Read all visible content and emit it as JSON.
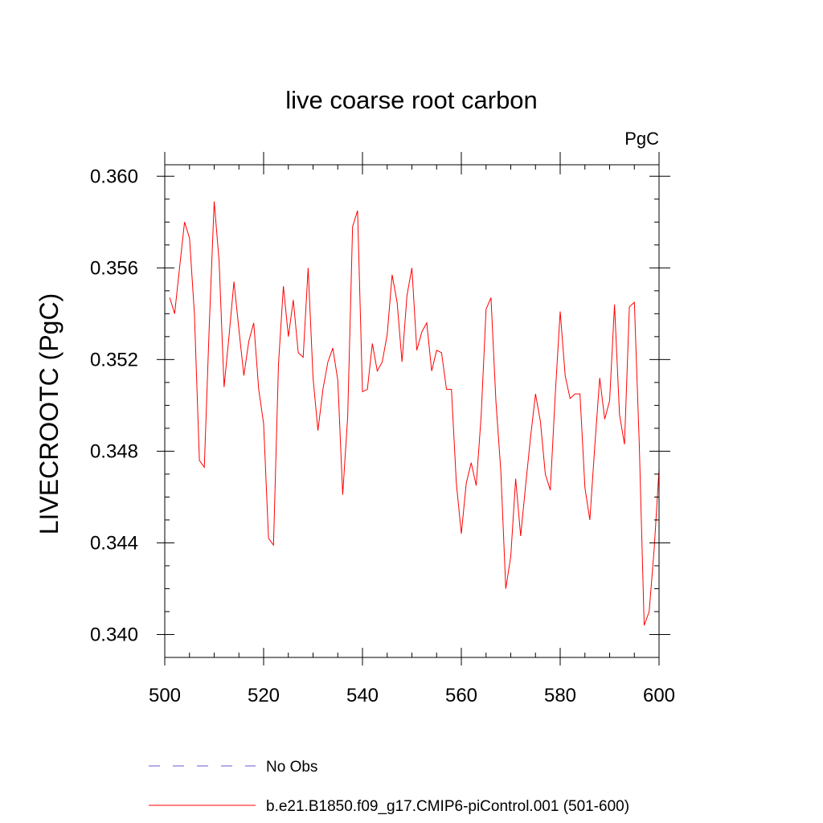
{
  "chart_data": {
    "type": "line",
    "title": "live coarse root carbon",
    "units_label": "PgC",
    "ylabel": "LIVECROOTC  (PgC)",
    "xlabel": "",
    "xlim": [
      500,
      600
    ],
    "ylim": [
      0.339,
      0.3605
    ],
    "xticks": [
      500,
      520,
      540,
      560,
      580,
      600
    ],
    "xtick_labels": [
      "500",
      "520",
      "540",
      "560",
      "580",
      "600"
    ],
    "yticks": [
      0.34,
      0.344,
      0.348,
      0.352,
      0.356,
      0.36
    ],
    "ytick_labels": [
      "0.340",
      "0.344",
      "0.348",
      "0.352",
      "0.356",
      "0.360"
    ],
    "grid": false,
    "legend_position": "bottom",
    "series": [
      {
        "name": "No Obs",
        "color": "#6a5acd",
        "style": "dashed",
        "x": [],
        "values": []
      },
      {
        "name": "b.e21.B1850.f09_g17.CMIP6-piControl.001 (501-600)",
        "color": "#ff0000",
        "style": "solid",
        "x": [
          501,
          502,
          503,
          504,
          505,
          506,
          507,
          508,
          509,
          510,
          511,
          512,
          513,
          514,
          515,
          516,
          517,
          518,
          519,
          520,
          521,
          522,
          523,
          524,
          525,
          526,
          527,
          528,
          529,
          530,
          531,
          532,
          533,
          534,
          535,
          536,
          537,
          538,
          539,
          540,
          541,
          542,
          543,
          544,
          545,
          546,
          547,
          548,
          549,
          550,
          551,
          552,
          553,
          554,
          555,
          556,
          557,
          558,
          559,
          560,
          561,
          562,
          563,
          564,
          565,
          566,
          567,
          568,
          569,
          570,
          571,
          572,
          573,
          574,
          575,
          576,
          577,
          578,
          579,
          580,
          581,
          582,
          583,
          584,
          585,
          586,
          587,
          588,
          589,
          590,
          591,
          592,
          593,
          594,
          595,
          596,
          597,
          598,
          599,
          600
        ],
        "values": [
          0.3547,
          0.354,
          0.356,
          0.358,
          0.3573,
          0.354,
          0.3476,
          0.3473,
          0.3535,
          0.3589,
          0.3563,
          0.3508,
          0.353,
          0.3554,
          0.3533,
          0.3513,
          0.3528,
          0.3536,
          0.3507,
          0.3492,
          0.3442,
          0.3439,
          0.3518,
          0.3552,
          0.353,
          0.3546,
          0.3523,
          0.3521,
          0.356,
          0.3512,
          0.3489,
          0.3507,
          0.3519,
          0.3525,
          0.3511,
          0.3461,
          0.3495,
          0.3578,
          0.3585,
          0.3506,
          0.3507,
          0.3527,
          0.3515,
          0.3519,
          0.3531,
          0.3557,
          0.3545,
          0.3519,
          0.3548,
          0.356,
          0.3524,
          0.3532,
          0.3536,
          0.3515,
          0.3524,
          0.3523,
          0.3507,
          0.3507,
          0.3466,
          0.3444,
          0.3466,
          0.3475,
          0.3465,
          0.3495,
          0.3542,
          0.3547,
          0.3502,
          0.3471,
          0.342,
          0.3434,
          0.3468,
          0.3443,
          0.3465,
          0.3486,
          0.3505,
          0.3493,
          0.347,
          0.3463,
          0.3505,
          0.3541,
          0.3513,
          0.3503,
          0.3505,
          0.3505,
          0.3464,
          0.345,
          0.3482,
          0.3512,
          0.3494,
          0.3502,
          0.3544,
          0.3496,
          0.3483,
          0.3543,
          0.3545,
          0.3483,
          0.3404,
          0.341,
          0.3437,
          0.3472
        ]
      }
    ]
  }
}
